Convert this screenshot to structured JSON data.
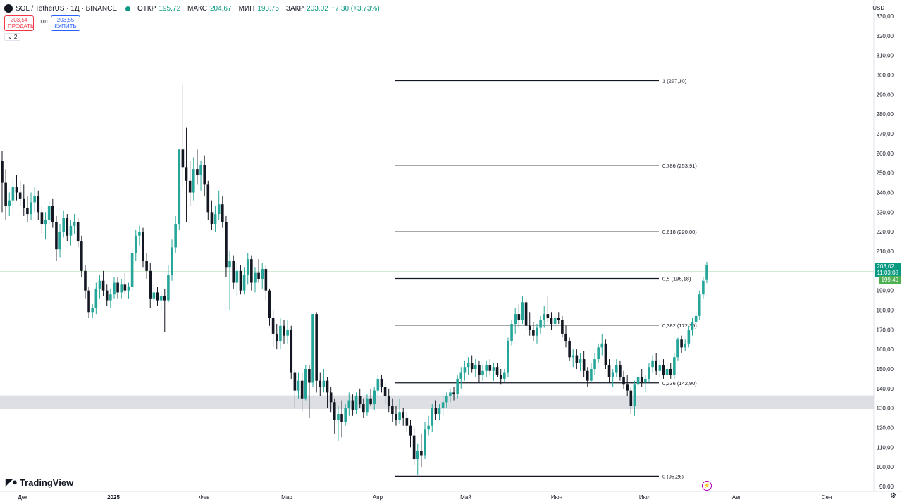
{
  "header": {
    "symbol": "SOL / TetherUS · 1Д · BINANCE",
    "open_label": "ОТКР",
    "open": "195,72",
    "high_label": "МАКС",
    "high": "204,67",
    "low_label": "МИН",
    "low": "193,75",
    "close_label": "ЗАКР",
    "close": "203,02",
    "change": "+7,30 (+3,73%)"
  },
  "trade": {
    "sell_price": "203,54",
    "sell_label": "ПРОДАТЬ",
    "spread": "0,01",
    "buy_price": "203,55",
    "buy_label": "КУПИТЬ"
  },
  "indicators_toggle": "⌄ 2",
  "currency": "USDT",
  "brand": "TradingView",
  "price_tags": {
    "last": "203,02",
    "countdown": "11:03:08",
    "line": "199,49"
  },
  "colors": {
    "up": "#26a69a",
    "down": "#131722",
    "fib_line": "#131722",
    "hline": "#4caf50",
    "zone": "#d1d4dc"
  },
  "icons": {
    "flash": "lightning-icon",
    "settings": "gear-icon",
    "logo": "tradingview-logo-icon"
  },
  "chart_data": {
    "type": "candlestick",
    "title": "SOL / TetherUS · 1Д · BINANCE",
    "ylabel": "USDT",
    "ylim": [
      90,
      330
    ],
    "y_ticks": [
      "90,00",
      "100,00",
      "110,00",
      "120,00",
      "130,00",
      "140,00",
      "150,00",
      "160,00",
      "170,00",
      "180,00",
      "190,00",
      "200,00",
      "210,00",
      "220,00",
      "230,00",
      "240,00",
      "250,00",
      "260,00",
      "270,00",
      "280,00",
      "290,00",
      "300,00",
      "310,00",
      "320,00",
      "330,00"
    ],
    "x_ticks": [
      "Дек",
      "2025",
      "Фев",
      "Мар",
      "Апр",
      "Май",
      "Июн",
      "Июл",
      "Авг",
      "Сен"
    ],
    "fibonacci": [
      {
        "level": "1",
        "price": 297.1,
        "label": "1 (297,10)"
      },
      {
        "level": "0.786",
        "price": 253.91,
        "label": "0,786 (253,91)"
      },
      {
        "level": "0.618",
        "price": 220.0,
        "label": "0,618 (220,00)"
      },
      {
        "level": "0.5",
        "price": 196.18,
        "label": "0,5 (196,18)"
      },
      {
        "level": "0.382",
        "price": 172.36,
        "label": "0,382 (172,36)"
      },
      {
        "level": "0.236",
        "price": 142.9,
        "label": "0,236 (142,90)"
      },
      {
        "level": "0",
        "price": 95.26,
        "label": "0 (95,26)"
      }
    ],
    "horizontal_line": 199.49,
    "last_price": 203.02,
    "support_zone": [
      129.5,
      136.5
    ],
    "candles": [
      {
        "o": 256,
        "h": 261,
        "l": 230,
        "c": 245
      },
      {
        "o": 245,
        "h": 252,
        "l": 226,
        "c": 233
      },
      {
        "o": 233,
        "h": 240,
        "l": 228,
        "c": 236
      },
      {
        "o": 236,
        "h": 247,
        "l": 232,
        "c": 243
      },
      {
        "o": 243,
        "h": 249,
        "l": 236,
        "c": 240
      },
      {
        "o": 240,
        "h": 246,
        "l": 233,
        "c": 237
      },
      {
        "o": 237,
        "h": 244,
        "l": 228,
        "c": 232
      },
      {
        "o": 232,
        "h": 238,
        "l": 225,
        "c": 229
      },
      {
        "o": 229,
        "h": 240,
        "l": 226,
        "c": 235
      },
      {
        "o": 235,
        "h": 243,
        "l": 230,
        "c": 238
      },
      {
        "o": 238,
        "h": 241,
        "l": 226,
        "c": 230
      },
      {
        "o": 230,
        "h": 233,
        "l": 219,
        "c": 224
      },
      {
        "o": 224,
        "h": 230,
        "l": 216,
        "c": 226
      },
      {
        "o": 226,
        "h": 236,
        "l": 224,
        "c": 233
      },
      {
        "o": 233,
        "h": 237,
        "l": 222,
        "c": 225
      },
      {
        "o": 225,
        "h": 228,
        "l": 205,
        "c": 211
      },
      {
        "o": 211,
        "h": 224,
        "l": 207,
        "c": 220
      },
      {
        "o": 220,
        "h": 231,
        "l": 217,
        "c": 227
      },
      {
        "o": 227,
        "h": 229,
        "l": 215,
        "c": 218
      },
      {
        "o": 218,
        "h": 226,
        "l": 213,
        "c": 223
      },
      {
        "o": 223,
        "h": 229,
        "l": 219,
        "c": 225
      },
      {
        "o": 225,
        "h": 227,
        "l": 212,
        "c": 215
      },
      {
        "o": 215,
        "h": 218,
        "l": 197,
        "c": 200
      },
      {
        "o": 200,
        "h": 203,
        "l": 186,
        "c": 190
      },
      {
        "o": 190,
        "h": 192,
        "l": 176,
        "c": 179
      },
      {
        "o": 179,
        "h": 183,
        "l": 176,
        "c": 181
      },
      {
        "o": 181,
        "h": 194,
        "l": 178,
        "c": 191
      },
      {
        "o": 191,
        "h": 198,
        "l": 186,
        "c": 195
      },
      {
        "o": 195,
        "h": 200,
        "l": 187,
        "c": 190
      },
      {
        "o": 190,
        "h": 193,
        "l": 182,
        "c": 185
      },
      {
        "o": 185,
        "h": 191,
        "l": 181,
        "c": 188
      },
      {
        "o": 188,
        "h": 197,
        "l": 186,
        "c": 194
      },
      {
        "o": 194,
        "h": 197,
        "l": 186,
        "c": 189
      },
      {
        "o": 189,
        "h": 196,
        "l": 186,
        "c": 193
      },
      {
        "o": 193,
        "h": 199,
        "l": 188,
        "c": 190
      },
      {
        "o": 190,
        "h": 194,
        "l": 186,
        "c": 192
      },
      {
        "o": 192,
        "h": 212,
        "l": 190,
        "c": 209
      },
      {
        "o": 209,
        "h": 221,
        "l": 205,
        "c": 218
      },
      {
        "o": 218,
        "h": 223,
        "l": 213,
        "c": 220
      },
      {
        "o": 220,
        "h": 222,
        "l": 202,
        "c": 205
      },
      {
        "o": 205,
        "h": 209,
        "l": 196,
        "c": 200
      },
      {
        "o": 200,
        "h": 204,
        "l": 181,
        "c": 186
      },
      {
        "o": 186,
        "h": 193,
        "l": 184,
        "c": 189
      },
      {
        "o": 189,
        "h": 192,
        "l": 182,
        "c": 185
      },
      {
        "o": 185,
        "h": 190,
        "l": 180,
        "c": 187
      },
      {
        "o": 187,
        "h": 191,
        "l": 169,
        "c": 185
      },
      {
        "o": 185,
        "h": 203,
        "l": 184,
        "c": 198
      },
      {
        "o": 198,
        "h": 216,
        "l": 195,
        "c": 212
      },
      {
        "o": 212,
        "h": 228,
        "l": 209,
        "c": 224
      },
      {
        "o": 224,
        "h": 262,
        "l": 221,
        "c": 262
      },
      {
        "o": 262,
        "h": 295,
        "l": 243,
        "c": 253
      },
      {
        "o": 253,
        "h": 273,
        "l": 225,
        "c": 246
      },
      {
        "o": 246,
        "h": 256,
        "l": 233,
        "c": 240
      },
      {
        "o": 240,
        "h": 258,
        "l": 236,
        "c": 252
      },
      {
        "o": 252,
        "h": 262,
        "l": 244,
        "c": 249
      },
      {
        "o": 249,
        "h": 256,
        "l": 241,
        "c": 254
      },
      {
        "o": 254,
        "h": 259,
        "l": 238,
        "c": 244
      },
      {
        "o": 244,
        "h": 246,
        "l": 226,
        "c": 230
      },
      {
        "o": 230,
        "h": 236,
        "l": 221,
        "c": 224
      },
      {
        "o": 224,
        "h": 233,
        "l": 220,
        "c": 229
      },
      {
        "o": 229,
        "h": 241,
        "l": 226,
        "c": 234
      },
      {
        "o": 234,
        "h": 238,
        "l": 222,
        "c": 225
      },
      {
        "o": 225,
        "h": 228,
        "l": 197,
        "c": 202
      },
      {
        "o": 202,
        "h": 210,
        "l": 180,
        "c": 205
      },
      {
        "o": 205,
        "h": 208,
        "l": 191,
        "c": 194
      },
      {
        "o": 194,
        "h": 204,
        "l": 187,
        "c": 200
      },
      {
        "o": 200,
        "h": 203,
        "l": 188,
        "c": 190
      },
      {
        "o": 190,
        "h": 202,
        "l": 188,
        "c": 198
      },
      {
        "o": 198,
        "h": 209,
        "l": 193,
        "c": 206
      },
      {
        "o": 206,
        "h": 208,
        "l": 190,
        "c": 194
      },
      {
        "o": 194,
        "h": 202,
        "l": 189,
        "c": 199
      },
      {
        "o": 199,
        "h": 206,
        "l": 194,
        "c": 196
      },
      {
        "o": 196,
        "h": 204,
        "l": 191,
        "c": 201
      },
      {
        "o": 201,
        "h": 203,
        "l": 185,
        "c": 190
      },
      {
        "o": 190,
        "h": 191,
        "l": 172,
        "c": 176
      },
      {
        "o": 176,
        "h": 180,
        "l": 161,
        "c": 168
      },
      {
        "o": 168,
        "h": 173,
        "l": 160,
        "c": 164
      },
      {
        "o": 164,
        "h": 176,
        "l": 160,
        "c": 172
      },
      {
        "o": 172,
        "h": 175,
        "l": 163,
        "c": 167
      },
      {
        "o": 167,
        "h": 175,
        "l": 163,
        "c": 170
      },
      {
        "o": 170,
        "h": 172,
        "l": 145,
        "c": 148
      },
      {
        "o": 148,
        "h": 150,
        "l": 130,
        "c": 139
      },
      {
        "o": 139,
        "h": 148,
        "l": 135,
        "c": 144
      },
      {
        "o": 144,
        "h": 148,
        "l": 128,
        "c": 135
      },
      {
        "o": 135,
        "h": 152,
        "l": 134,
        "c": 150
      },
      {
        "o": 150,
        "h": 152,
        "l": 125,
        "c": 143
      },
      {
        "o": 143,
        "h": 178,
        "l": 141,
        "c": 178
      },
      {
        "o": 178,
        "h": 179,
        "l": 138,
        "c": 144
      },
      {
        "o": 144,
        "h": 148,
        "l": 136,
        "c": 141
      },
      {
        "o": 141,
        "h": 150,
        "l": 138,
        "c": 144
      },
      {
        "o": 144,
        "h": 146,
        "l": 130,
        "c": 138
      },
      {
        "o": 138,
        "h": 141,
        "l": 128,
        "c": 133
      },
      {
        "o": 133,
        "h": 135,
        "l": 117,
        "c": 124
      },
      {
        "o": 124,
        "h": 131,
        "l": 113,
        "c": 127
      },
      {
        "o": 127,
        "h": 134,
        "l": 115,
        "c": 123
      },
      {
        "o": 123,
        "h": 132,
        "l": 121,
        "c": 130
      },
      {
        "o": 130,
        "h": 138,
        "l": 126,
        "c": 134
      },
      {
        "o": 134,
        "h": 137,
        "l": 126,
        "c": 129
      },
      {
        "o": 129,
        "h": 138,
        "l": 127,
        "c": 136
      },
      {
        "o": 136,
        "h": 140,
        "l": 130,
        "c": 132
      },
      {
        "o": 132,
        "h": 135,
        "l": 125,
        "c": 128
      },
      {
        "o": 128,
        "h": 137,
        "l": 126,
        "c": 135
      },
      {
        "o": 135,
        "h": 140,
        "l": 131,
        "c": 132
      },
      {
        "o": 132,
        "h": 141,
        "l": 129,
        "c": 139
      },
      {
        "o": 139,
        "h": 147,
        "l": 136,
        "c": 145
      },
      {
        "o": 145,
        "h": 147,
        "l": 138,
        "c": 141
      },
      {
        "o": 141,
        "h": 143,
        "l": 132,
        "c": 136
      },
      {
        "o": 136,
        "h": 140,
        "l": 128,
        "c": 131
      },
      {
        "o": 131,
        "h": 135,
        "l": 123,
        "c": 127
      },
      {
        "o": 127,
        "h": 131,
        "l": 121,
        "c": 124
      },
      {
        "o": 124,
        "h": 135,
        "l": 122,
        "c": 128
      },
      {
        "o": 128,
        "h": 130,
        "l": 121,
        "c": 125
      },
      {
        "o": 125,
        "h": 128,
        "l": 118,
        "c": 121
      },
      {
        "o": 121,
        "h": 124,
        "l": 110,
        "c": 116
      },
      {
        "o": 116,
        "h": 120,
        "l": 101,
        "c": 104
      },
      {
        "o": 104,
        "h": 112,
        "l": 96,
        "c": 108
      },
      {
        "o": 108,
        "h": 117,
        "l": 100,
        "c": 106
      },
      {
        "o": 106,
        "h": 123,
        "l": 104,
        "c": 119
      },
      {
        "o": 119,
        "h": 126,
        "l": 116,
        "c": 121
      },
      {
        "o": 121,
        "h": 132,
        "l": 118,
        "c": 130
      },
      {
        "o": 130,
        "h": 134,
        "l": 124,
        "c": 127
      },
      {
        "o": 127,
        "h": 132,
        "l": 124,
        "c": 130
      },
      {
        "o": 130,
        "h": 137,
        "l": 126,
        "c": 133
      },
      {
        "o": 133,
        "h": 138,
        "l": 130,
        "c": 136
      },
      {
        "o": 136,
        "h": 140,
        "l": 133,
        "c": 138
      },
      {
        "o": 138,
        "h": 141,
        "l": 134,
        "c": 137
      },
      {
        "o": 137,
        "h": 147,
        "l": 135,
        "c": 145
      },
      {
        "o": 145,
        "h": 151,
        "l": 140,
        "c": 148
      },
      {
        "o": 148,
        "h": 154,
        "l": 144,
        "c": 151
      },
      {
        "o": 151,
        "h": 156,
        "l": 147,
        "c": 153
      },
      {
        "o": 153,
        "h": 157,
        "l": 148,
        "c": 150
      },
      {
        "o": 150,
        "h": 155,
        "l": 146,
        "c": 152
      },
      {
        "o": 152,
        "h": 154,
        "l": 143,
        "c": 147
      },
      {
        "o": 147,
        "h": 152,
        "l": 144,
        "c": 149
      },
      {
        "o": 149,
        "h": 154,
        "l": 146,
        "c": 152
      },
      {
        "o": 152,
        "h": 155,
        "l": 147,
        "c": 149
      },
      {
        "o": 149,
        "h": 153,
        "l": 144,
        "c": 151
      },
      {
        "o": 151,
        "h": 153,
        "l": 146,
        "c": 147
      },
      {
        "o": 147,
        "h": 150,
        "l": 142,
        "c": 145
      },
      {
        "o": 145,
        "h": 150,
        "l": 143,
        "c": 148
      },
      {
        "o": 148,
        "h": 166,
        "l": 146,
        "c": 164
      },
      {
        "o": 164,
        "h": 175,
        "l": 162,
        "c": 173
      },
      {
        "o": 173,
        "h": 181,
        "l": 168,
        "c": 178
      },
      {
        "o": 178,
        "h": 183,
        "l": 171,
        "c": 175
      },
      {
        "o": 175,
        "h": 187,
        "l": 173,
        "c": 184
      },
      {
        "o": 184,
        "h": 186,
        "l": 170,
        "c": 172
      },
      {
        "o": 172,
        "h": 179,
        "l": 167,
        "c": 170
      },
      {
        "o": 170,
        "h": 174,
        "l": 164,
        "c": 167
      },
      {
        "o": 167,
        "h": 173,
        "l": 163,
        "c": 171
      },
      {
        "o": 171,
        "h": 177,
        "l": 168,
        "c": 175
      },
      {
        "o": 175,
        "h": 182,
        "l": 171,
        "c": 178
      },
      {
        "o": 178,
        "h": 187,
        "l": 174,
        "c": 176
      },
      {
        "o": 176,
        "h": 179,
        "l": 170,
        "c": 173
      },
      {
        "o": 173,
        "h": 178,
        "l": 171,
        "c": 176
      },
      {
        "o": 176,
        "h": 179,
        "l": 173,
        "c": 175
      },
      {
        "o": 175,
        "h": 177,
        "l": 166,
        "c": 168
      },
      {
        "o": 168,
        "h": 172,
        "l": 161,
        "c": 164
      },
      {
        "o": 164,
        "h": 166,
        "l": 154,
        "c": 156
      },
      {
        "o": 156,
        "h": 160,
        "l": 151,
        "c": 157
      },
      {
        "o": 157,
        "h": 160,
        "l": 150,
        "c": 153
      },
      {
        "o": 153,
        "h": 158,
        "l": 149,
        "c": 155
      },
      {
        "o": 155,
        "h": 159,
        "l": 146,
        "c": 149
      },
      {
        "o": 149,
        "h": 151,
        "l": 141,
        "c": 144
      },
      {
        "o": 144,
        "h": 153,
        "l": 143,
        "c": 150
      },
      {
        "o": 150,
        "h": 158,
        "l": 147,
        "c": 155
      },
      {
        "o": 155,
        "h": 163,
        "l": 153,
        "c": 161
      },
      {
        "o": 161,
        "h": 168,
        "l": 157,
        "c": 163
      },
      {
        "o": 163,
        "h": 165,
        "l": 150,
        "c": 152
      },
      {
        "o": 152,
        "h": 155,
        "l": 143,
        "c": 146
      },
      {
        "o": 146,
        "h": 150,
        "l": 141,
        "c": 148
      },
      {
        "o": 148,
        "h": 155,
        "l": 146,
        "c": 152
      },
      {
        "o": 152,
        "h": 154,
        "l": 144,
        "c": 146
      },
      {
        "o": 146,
        "h": 149,
        "l": 140,
        "c": 142
      },
      {
        "o": 142,
        "h": 147,
        "l": 136,
        "c": 139
      },
      {
        "o": 139,
        "h": 141,
        "l": 127,
        "c": 131
      },
      {
        "o": 131,
        "h": 144,
        "l": 126,
        "c": 142
      },
      {
        "o": 142,
        "h": 149,
        "l": 140,
        "c": 146
      },
      {
        "o": 146,
        "h": 150,
        "l": 141,
        "c": 143
      },
      {
        "o": 143,
        "h": 147,
        "l": 138,
        "c": 145
      },
      {
        "o": 145,
        "h": 153,
        "l": 143,
        "c": 151
      },
      {
        "o": 151,
        "h": 157,
        "l": 148,
        "c": 154
      },
      {
        "o": 154,
        "h": 158,
        "l": 147,
        "c": 149
      },
      {
        "o": 149,
        "h": 155,
        "l": 146,
        "c": 152
      },
      {
        "o": 152,
        "h": 155,
        "l": 145,
        "c": 147
      },
      {
        "o": 147,
        "h": 153,
        "l": 145,
        "c": 150
      },
      {
        "o": 150,
        "h": 153,
        "l": 145,
        "c": 147
      },
      {
        "o": 147,
        "h": 158,
        "l": 145,
        "c": 156
      },
      {
        "o": 156,
        "h": 166,
        "l": 154,
        "c": 165
      },
      {
        "o": 165,
        "h": 167,
        "l": 158,
        "c": 161
      },
      {
        "o": 161,
        "h": 165,
        "l": 159,
        "c": 163
      },
      {
        "o": 163,
        "h": 172,
        "l": 161,
        "c": 170
      },
      {
        "o": 170,
        "h": 176,
        "l": 167,
        "c": 174
      },
      {
        "o": 174,
        "h": 179,
        "l": 171,
        "c": 177
      },
      {
        "o": 177,
        "h": 190,
        "l": 175,
        "c": 188
      },
      {
        "o": 188,
        "h": 197,
        "l": 186,
        "c": 195
      },
      {
        "o": 195.72,
        "h": 204.67,
        "l": 193.75,
        "c": 203.02
      }
    ]
  }
}
